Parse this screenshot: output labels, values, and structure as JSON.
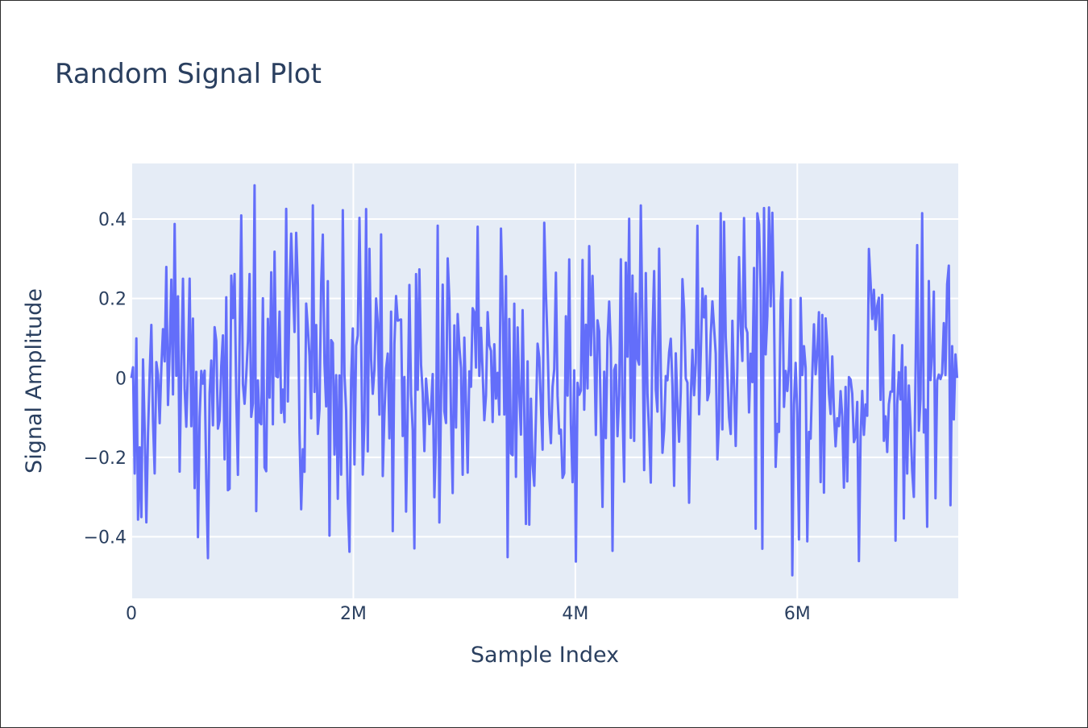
{
  "chart_data": {
    "type": "line",
    "title": "Random Signal Plot",
    "xlabel": "Sample Index",
    "ylabel": "Signal Amplitude",
    "xlim": [
      0,
      7450000
    ],
    "ylim": [
      -0.555,
      0.54
    ],
    "x_ticks": [
      {
        "value": 0,
        "label": "0"
      },
      {
        "value": 2000000,
        "label": "2M"
      },
      {
        "value": 4000000,
        "label": "4M"
      },
      {
        "value": 6000000,
        "label": "6M"
      }
    ],
    "y_ticks": [
      {
        "value": -0.4,
        "label": "−0.4"
      },
      {
        "value": -0.2,
        "label": "−0.2"
      },
      {
        "value": 0,
        "label": "0"
      },
      {
        "value": 0.2,
        "label": "0.2"
      },
      {
        "value": 0.4,
        "label": "0.4"
      }
    ],
    "grid": true,
    "legend": "none",
    "colors": {
      "line": "#636efa",
      "plot_bg": "#e5ecf6",
      "grid": "#ffffff",
      "text": "#2a3f5f"
    },
    "series": [
      {
        "sample_step": 15000,
        "x_start": 0,
        "x_end": 7450000,
        "y_max": 0.485,
        "y_min": -0.497,
        "envelope": 0.4,
        "seed": 20240612
      }
    ]
  }
}
